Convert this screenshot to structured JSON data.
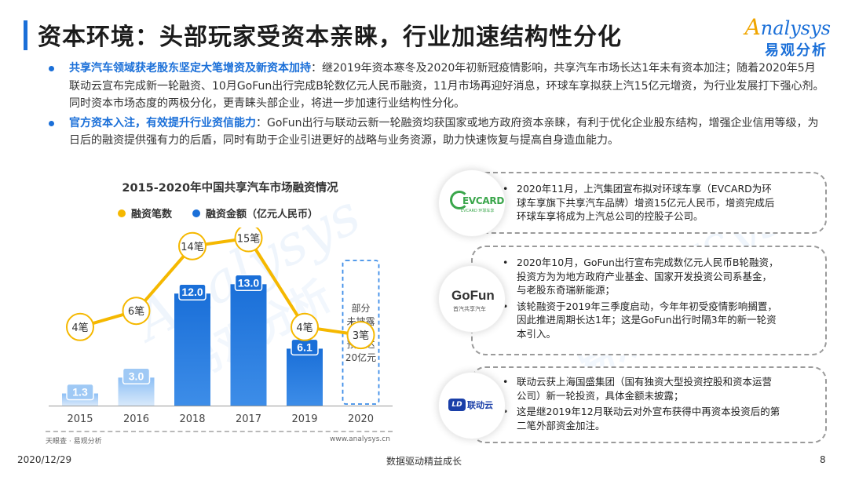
{
  "header": {
    "title": "资本环境：头部玩家受资本亲睐，行业加速结构性分化",
    "logo_en": "nalysys",
    "logo_en_initial": "A",
    "logo_cn": "易观分析"
  },
  "bullets": [
    {
      "highlight": "共享汽车领域获老股东坚定大笔增资及新资本加持",
      "text": "：继2019年资本寒冬及2020年初新冠疫情影响，共享汽车市场长达1年未有资本加注；随着2020年5月联动云宣布完成新一轮融资、10月GoFun出行完成B轮数亿元人民币融资，11月市场再迎好消息，环球车享拟获上汽15亿元增资，为行业发展打下强心剂。同时资本市场态度的两极分化，更青睐头部企业，将进一步加速行业结构性分化。"
    },
    {
      "highlight": "官方资本入注，有效提升行业资信能力",
      "text": "：GoFun出行与联动云新一轮融资均获国家或地方政府资本亲睐，有利于优化企业股东结构，增强企业信用等级，为日后的融资提供强有力的后盾，同时有助于企业引进更好的战略与业务资源，助力快速恢复与提高自身造血能力。"
    }
  ],
  "chart_data": {
    "type": "bar",
    "title": "2015-2020年中国共享汽车市场融资情况",
    "categories": [
      "2015",
      "2016",
      "2018",
      "2017",
      "2019",
      "2020"
    ],
    "series": [
      {
        "name": "融资笔数",
        "kind": "line",
        "color": "#f5b800",
        "values": [
          4,
          6,
          14,
          15,
          4,
          3
        ],
        "labels": [
          "4笔",
          "6笔",
          "14笔",
          "15笔",
          "4笔",
          "3笔"
        ]
      },
      {
        "name": "融资金额（亿元人民币）",
        "kind": "bar",
        "color": "#1a6fd8",
        "values": [
          1.3,
          3.0,
          12.0,
          13.0,
          6.1,
          null
        ],
        "labels": [
          "1.3",
          "3.0",
          "12.0",
          "13.0",
          "6.1",
          ""
        ]
      }
    ],
    "note_2020": [
      "部分",
      "未披露",
      "预计达",
      "20亿元"
    ]
  },
  "source": {
    "left": "天眼查 · 易观分析",
    "right": "www.analysys.cn"
  },
  "panels": [
    {
      "logo_text": "EVCARD",
      "logo_sub": "EVCARD 环球车享",
      "items": [
        "2020年11月，上汽集团宣布拟对环球车享（EVCARD为环球车享旗下共享汽车品牌）增资15亿元人民币，增资完成后环球车享将成为上汽总公司的控股子公司。"
      ]
    },
    {
      "logo_text": "GoFun",
      "logo_sub": "首汽共享汽车",
      "items": [
        "2020年10月，GoFun出行宣布完成数亿元人民币B轮融资，投资方为为地方政府产业基金、国家开发投资公司系基金，与老股东奇瑞新能源；",
        "该轮融资于2019年三季度启动，今年年初受疫情影响搁置，因此推进周期长达1年；这是GoFun出行时隔3年的新一轮资本引入。"
      ]
    },
    {
      "logo_badge": "LD",
      "logo_text": "联动云",
      "items": [
        "联动云获上海国盛集团（国有独资大型投资控股和资本运营公司）新一轮投资，具体金额未披露；",
        "这是继2019年12月联动云对外宣布获得中再资本投资后的第二笔外部资金加注。"
      ]
    }
  ],
  "footer": {
    "date": "2020/12/29",
    "slogan": "数据驱动精益成长",
    "page": "8"
  }
}
